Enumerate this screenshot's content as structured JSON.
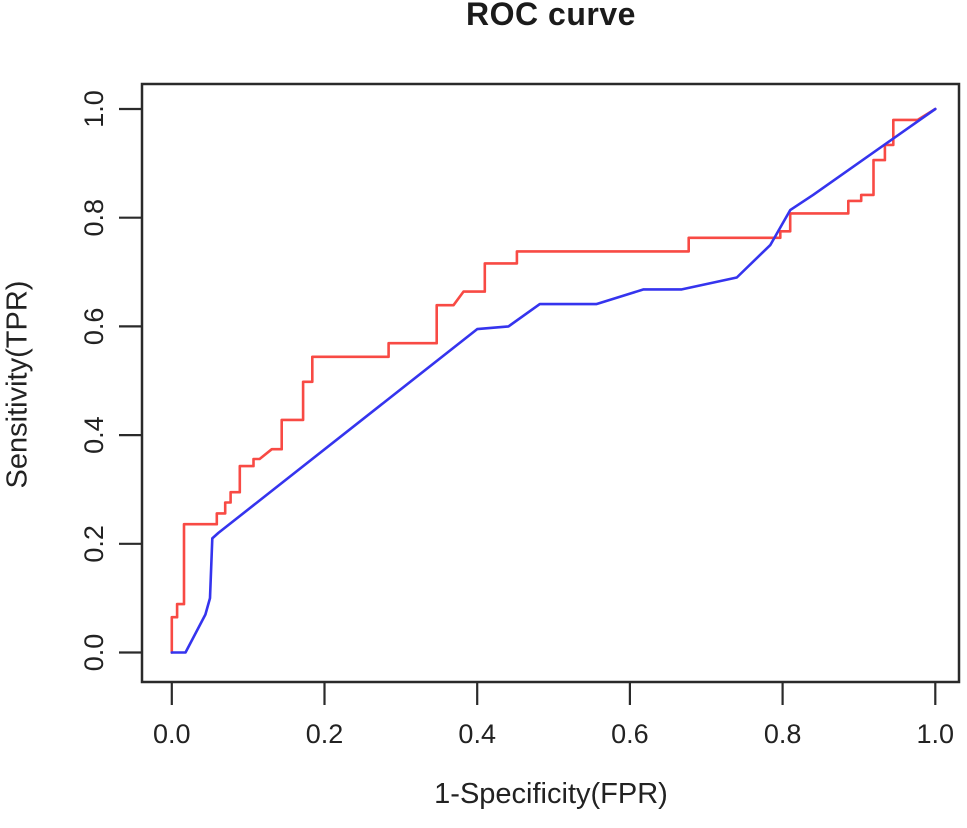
{
  "chart_data": {
    "type": "line",
    "title": "ROC curve",
    "xlabel": "1-Specificity(FPR)",
    "ylabel": "Sensitivity(TPR)",
    "xlim": [
      0.0,
      1.0
    ],
    "ylim": [
      0.0,
      1.0
    ],
    "grid": false,
    "legend": "none",
    "x_ticks": {
      "values": [
        0.0,
        0.2,
        0.4,
        0.6,
        0.8,
        1.0
      ],
      "labels": [
        "0.0",
        "0.2",
        "0.4",
        "0.6",
        "0.8",
        "1.0"
      ]
    },
    "y_ticks": {
      "values": [
        0.0,
        0.2,
        0.4,
        0.6,
        0.8,
        1.0
      ],
      "labels": [
        "0.0",
        "0.2",
        "0.4",
        "0.6",
        "0.8",
        "1.0"
      ]
    },
    "series": [
      {
        "name": "red-roc",
        "color": "#f84a44",
        "style": "step",
        "points": [
          [
            0.0,
            0.0
          ],
          [
            0.0,
            0.065
          ],
          [
            0.007,
            0.065
          ],
          [
            0.007,
            0.089
          ],
          [
            0.016,
            0.089
          ],
          [
            0.016,
            0.236
          ],
          [
            0.059,
            0.236
          ],
          [
            0.059,
            0.256
          ],
          [
            0.07,
            0.256
          ],
          [
            0.07,
            0.276
          ],
          [
            0.077,
            0.276
          ],
          [
            0.077,
            0.295
          ],
          [
            0.089,
            0.295
          ],
          [
            0.089,
            0.343
          ],
          [
            0.107,
            0.343
          ],
          [
            0.107,
            0.356
          ],
          [
            0.115,
            0.356
          ],
          [
            0.131,
            0.374
          ],
          [
            0.144,
            0.374
          ],
          [
            0.144,
            0.428
          ],
          [
            0.172,
            0.428
          ],
          [
            0.172,
            0.498
          ],
          [
            0.184,
            0.498
          ],
          [
            0.184,
            0.544
          ],
          [
            0.284,
            0.544
          ],
          [
            0.284,
            0.569
          ],
          [
            0.347,
            0.569
          ],
          [
            0.347,
            0.639
          ],
          [
            0.369,
            0.639
          ],
          [
            0.382,
            0.664
          ],
          [
            0.41,
            0.664
          ],
          [
            0.41,
            0.716
          ],
          [
            0.452,
            0.716
          ],
          [
            0.452,
            0.738
          ],
          [
            0.677,
            0.738
          ],
          [
            0.677,
            0.763
          ],
          [
            0.797,
            0.763
          ],
          [
            0.797,
            0.775
          ],
          [
            0.81,
            0.775
          ],
          [
            0.81,
            0.808
          ],
          [
            0.886,
            0.808
          ],
          [
            0.886,
            0.831
          ],
          [
            0.903,
            0.831
          ],
          [
            0.903,
            0.842
          ],
          [
            0.919,
            0.842
          ],
          [
            0.919,
            0.906
          ],
          [
            0.934,
            0.906
          ],
          [
            0.934,
            0.934
          ],
          [
            0.945,
            0.934
          ],
          [
            0.945,
            0.98
          ],
          [
            0.977,
            0.98
          ],
          [
            1.0,
            1.0
          ]
        ]
      },
      {
        "name": "blue-roc",
        "color": "#3534ee",
        "style": "line",
        "points": [
          [
            0.0,
            0.0
          ],
          [
            0.018,
            0.0
          ],
          [
            0.044,
            0.07
          ],
          [
            0.05,
            0.1
          ],
          [
            0.053,
            0.21
          ],
          [
            0.061,
            0.22
          ],
          [
            0.4,
            0.595
          ],
          [
            0.441,
            0.6
          ],
          [
            0.482,
            0.641
          ],
          [
            0.556,
            0.641
          ],
          [
            0.618,
            0.668
          ],
          [
            0.668,
            0.668
          ],
          [
            0.74,
            0.69
          ],
          [
            0.784,
            0.75
          ],
          [
            0.81,
            0.814
          ],
          [
            0.84,
            0.842
          ],
          [
            1.0,
            1.0
          ]
        ]
      }
    ]
  },
  "colors": {
    "frame": "#2a2a2a",
    "tick": "#2a2a2a",
    "text": "#222222",
    "background": "#ffffff"
  }
}
